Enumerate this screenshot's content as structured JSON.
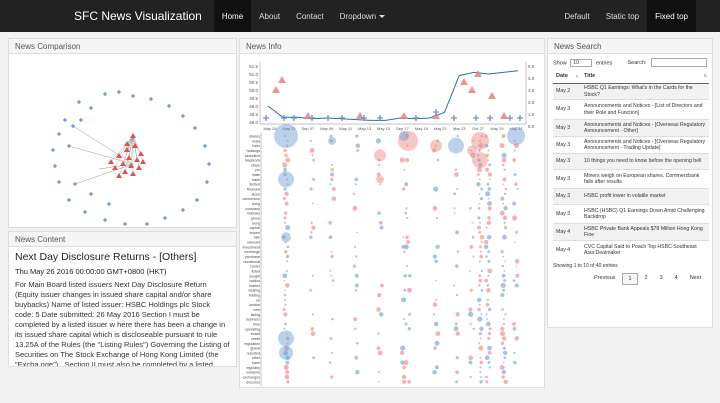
{
  "nav": {
    "brand": "SFC News Visualization",
    "items": [
      {
        "label": "Home",
        "active": true
      },
      {
        "label": "About",
        "active": false
      },
      {
        "label": "Contact",
        "active": false
      },
      {
        "label": "Dropdown",
        "active": false
      }
    ],
    "right": [
      {
        "label": "Default",
        "active": false
      },
      {
        "label": "Static top",
        "active": false
      },
      {
        "label": "Fixed top",
        "active": true
      }
    ]
  },
  "panels": {
    "compare_title": "News Comparison",
    "content_title": "News Content",
    "info_title": "News Info",
    "search_title": "News Search"
  },
  "content": {
    "title": "Next Day Disclosure Returns - [Others]",
    "time": "Thu May 26 2016 00:00:00 GMT+0800 (HKT)",
    "body": "For Main Board listed issuers Next Day Disclosure Return (Equity issuer changes in issued share capital and/or share buybacks) Name of listed issuer: HSBC Holdings plc Stock code: 5 Date submitted: 26 May 2016 Section I must be completed by a listed issuer w here there has been a change in its issued share capital which is discloseable pursuant to rule 13.25A of the Rules (the \"Listing Rules\") Governing the Listing of Securities on The Stock Exchange of Hong Kong Limited (the \"Excha nge\") . Section II must also be completed by a listed issuer where it has made a repurchase of shares"
  },
  "search": {
    "show_label": "Show",
    "entries_value": "10",
    "entries_label": "entries",
    "search_label": "Search:",
    "col_date": "Date",
    "col_title": "Title",
    "rows": [
      {
        "date": "May 2",
        "title": "HSBC Q1 Earnings: What's in the Cards for the Stock?"
      },
      {
        "date": "May 3",
        "title": "Announcements and Notices - [List of Directors and their Role and Function]"
      },
      {
        "date": "May 3",
        "title": "Announcements and Notices - [Overseas Regulatory Announcement - Other]"
      },
      {
        "date": "May 3",
        "title": "Announcements and Notices - [Overseas Regulatory Announcement - Trading Update]"
      },
      {
        "date": "May 3",
        "title": "10 things you need to know before the opening bell"
      },
      {
        "date": "May 3",
        "title": "Miners weigh on European shares, Commerzbank falls after results"
      },
      {
        "date": "May 3",
        "title": "HSBC profit lower in volatile market"
      },
      {
        "date": "May 3",
        "title": "HSBC (HSBC) Q1 Earnings Down Amid Challenging Backdrop"
      },
      {
        "date": "May 4",
        "title": "HSBC Private Bank Appeals $78 Million Hong Kong Fine"
      },
      {
        "date": "May 4",
        "title": "CVC Capital Said to Poach Top HSBC Southeast Asia Dealmaker"
      }
    ],
    "info": "Showing 1 to 10 of 40 entries",
    "pager": [
      "Previous",
      "1",
      "2",
      "3",
      "4",
      "Next"
    ]
  },
  "chart_data": {
    "type": "scatter",
    "y_ticks_left": [
      "51.5",
      "51.0",
      "50.5",
      "50.0",
      "49.5",
      "49.0",
      "48.5",
      "48.0"
    ],
    "y_ticks_right": [
      "5.0",
      "4.0",
      "3.0",
      "2.0",
      "1.0",
      "0.0"
    ],
    "x_ticks": [
      "May 28",
      "May 23",
      "Sep 07",
      "May 09",
      "May 11",
      "May 13",
      "May 15",
      "Sep 17",
      "May 19",
      "May 21",
      "Mar 23",
      "Oct 27",
      "May 29",
      "May 31"
    ],
    "price_line": [
      49.0,
      48.3,
      48.3,
      48.2,
      48.25,
      48.2,
      48.15,
      48.1,
      48.1,
      48.25,
      48.2,
      48.25,
      48.6,
      50.9,
      51.1,
      51.0,
      51.1,
      51.2
    ],
    "keywords": [
      "shares",
      "india",
      "hsbc",
      "holdings",
      "securities",
      "blackrock",
      "share",
      "pic",
      "state",
      "bank",
      "limited",
      "financial",
      "stock",
      "conversion",
      "hong",
      "company",
      "ordinary",
      "group",
      "kong",
      "capital",
      "issued",
      "rate",
      "relevant",
      "investment",
      "exchange",
      "purchase",
      "unnational",
      "issuer",
      "listed",
      "sought",
      "holdco",
      "market",
      "dealing",
      "trading",
      "uk",
      "london",
      "new",
      "listing",
      "business",
      "time",
      "operating",
      "board",
      "credit",
      "regulation",
      "global",
      "reported",
      "other",
      "bank",
      "regularly",
      "contents",
      "exchanges",
      "directors"
    ]
  }
}
